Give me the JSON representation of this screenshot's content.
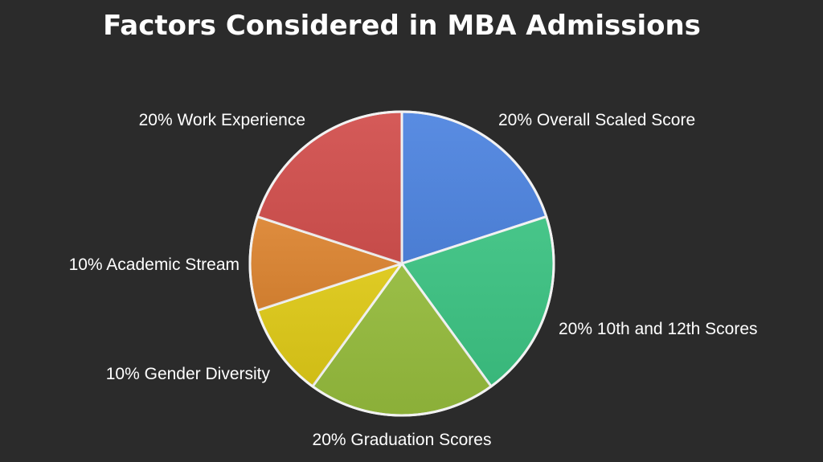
{
  "title": "Factors Considered in MBA Admissions",
  "chart_data": {
    "type": "pie",
    "title": "Factors Considered in MBA Admissions",
    "start": "12 o'clock",
    "direction": "clockwise",
    "slices": [
      {
        "label": "20% Overall Scaled Score",
        "value": 20,
        "color": "#4f85e0"
      },
      {
        "label": "20% 10th and 12th Scores",
        "value": 20,
        "color": "#3cc282"
      },
      {
        "label": "20% Graduation Scores",
        "value": 20,
        "color": "#94ba3c"
      },
      {
        "label": "10% Gender Diversity",
        "value": 10,
        "color": "#ddc817"
      },
      {
        "label": "10% Academic Stream",
        "value": 10,
        "color": "#dc8532"
      },
      {
        "label": "20% Work Experience",
        "value": 20,
        "color": "#d2504e"
      }
    ]
  }
}
